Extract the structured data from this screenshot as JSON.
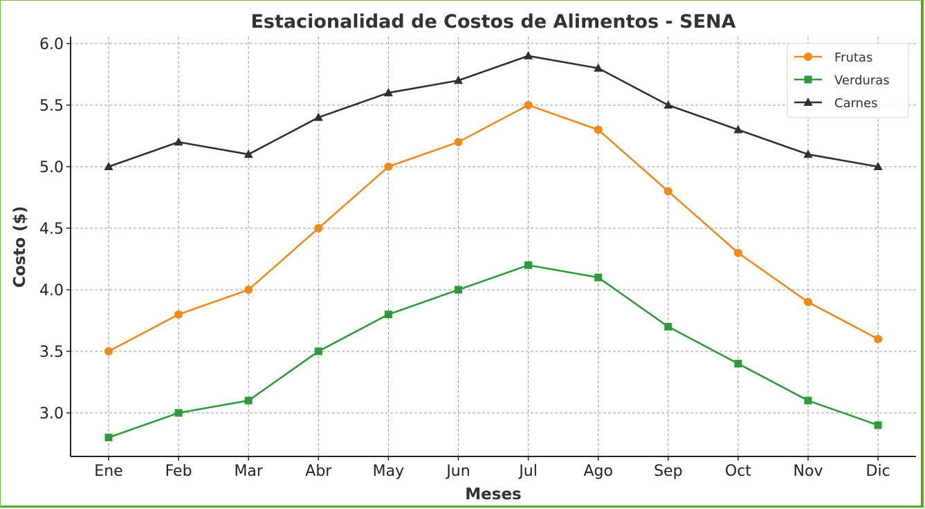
{
  "chart_data": {
    "type": "line",
    "title": "Estacionalidad de Costos de Alimentos - SENA",
    "xlabel": "Meses",
    "ylabel": "Costo ($)",
    "categories": [
      "Ene",
      "Feb",
      "Mar",
      "Abr",
      "May",
      "Jun",
      "Jul",
      "Ago",
      "Sep",
      "Oct",
      "Nov",
      "Dic"
    ],
    "ylim": [
      2.65,
      6.05
    ],
    "yticks": [
      "3.0",
      "3.5",
      "4.0",
      "4.5",
      "5.0",
      "5.5",
      "6.0"
    ],
    "grid": true,
    "legend_position": "top-right",
    "series": [
      {
        "name": "Frutas",
        "color": "#f28a1a",
        "marker": "circle",
        "values": [
          3.5,
          3.8,
          4.0,
          4.5,
          5.0,
          5.2,
          5.5,
          5.3,
          4.8,
          4.3,
          3.9,
          3.6
        ]
      },
      {
        "name": "Verduras",
        "color": "#2e9b3a",
        "marker": "square",
        "values": [
          2.8,
          3.0,
          3.1,
          3.5,
          3.8,
          4.0,
          4.2,
          4.1,
          3.7,
          3.4,
          3.1,
          2.9
        ]
      },
      {
        "name": "Carnes",
        "color": "#2f2f2f",
        "marker": "triangle",
        "values": [
          5.0,
          5.2,
          5.1,
          5.4,
          5.6,
          5.7,
          5.9,
          5.8,
          5.5,
          5.3,
          5.1,
          5.0
        ]
      }
    ]
  }
}
